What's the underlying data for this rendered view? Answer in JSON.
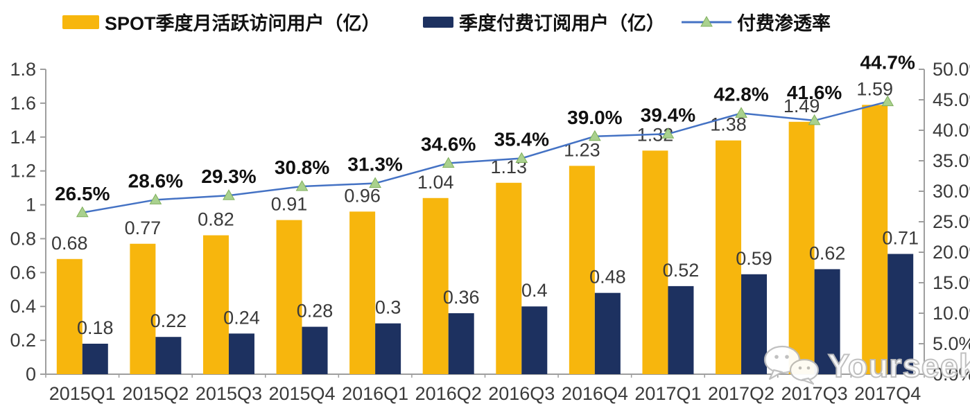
{
  "chart_data": {
    "type": "combo-bar-line",
    "title": "",
    "categories": [
      "2015Q1",
      "2015Q2",
      "2015Q3",
      "2015Q4",
      "2016Q1",
      "2016Q2",
      "2016Q3",
      "2016Q4",
      "2017Q1",
      "2017Q2",
      "2017Q3",
      "2017Q4"
    ],
    "series": [
      {
        "name": "SPOT季度月活跃访问用户（亿）",
        "type": "bar",
        "axis": "left",
        "color": "#F7B60D",
        "values": [
          0.68,
          0.77,
          0.82,
          0.91,
          0.96,
          1.04,
          1.13,
          1.23,
          1.32,
          1.38,
          1.49,
          1.59
        ]
      },
      {
        "name": "季度付费订阅用户（亿）",
        "type": "bar",
        "axis": "left",
        "color": "#1D3160",
        "values": [
          0.18,
          0.22,
          0.24,
          0.28,
          0.3,
          0.36,
          0.4,
          0.48,
          0.52,
          0.59,
          0.62,
          0.71
        ]
      },
      {
        "name": "付费渗透率",
        "type": "line",
        "axis": "right",
        "color": "#4472C4",
        "marker": "triangle",
        "marker_color": "#A9D18E",
        "values": [
          26.5,
          28.6,
          29.3,
          30.8,
          31.3,
          34.6,
          35.4,
          39.0,
          39.4,
          42.8,
          41.6,
          44.7
        ]
      }
    ],
    "left_axis": {
      "min": 0,
      "max": 1.8,
      "step": 0.2,
      "ticks": [
        "0",
        "0.2",
        "0.4",
        "0.6",
        "0.8",
        "1",
        "1.2",
        "1.4",
        "1.6",
        "1.8"
      ]
    },
    "right_axis": {
      "min": 0,
      "max": 50,
      "step": 5,
      "ticks": [
        "0.0%",
        "5.0%",
        "10.0%",
        "15.0%",
        "20.0%",
        "25.0%",
        "30.0%",
        "35.0%",
        "40.0%",
        "45.0%",
        "50.0%"
      ]
    },
    "grid": false,
    "legend_position": "top",
    "label_color": "#3a3a3a",
    "percent_label_color": "#111111",
    "axis_line_color": "#9e9e9e"
  },
  "watermark": {
    "text": "Yourseeker",
    "icon": "wechat-icon"
  }
}
